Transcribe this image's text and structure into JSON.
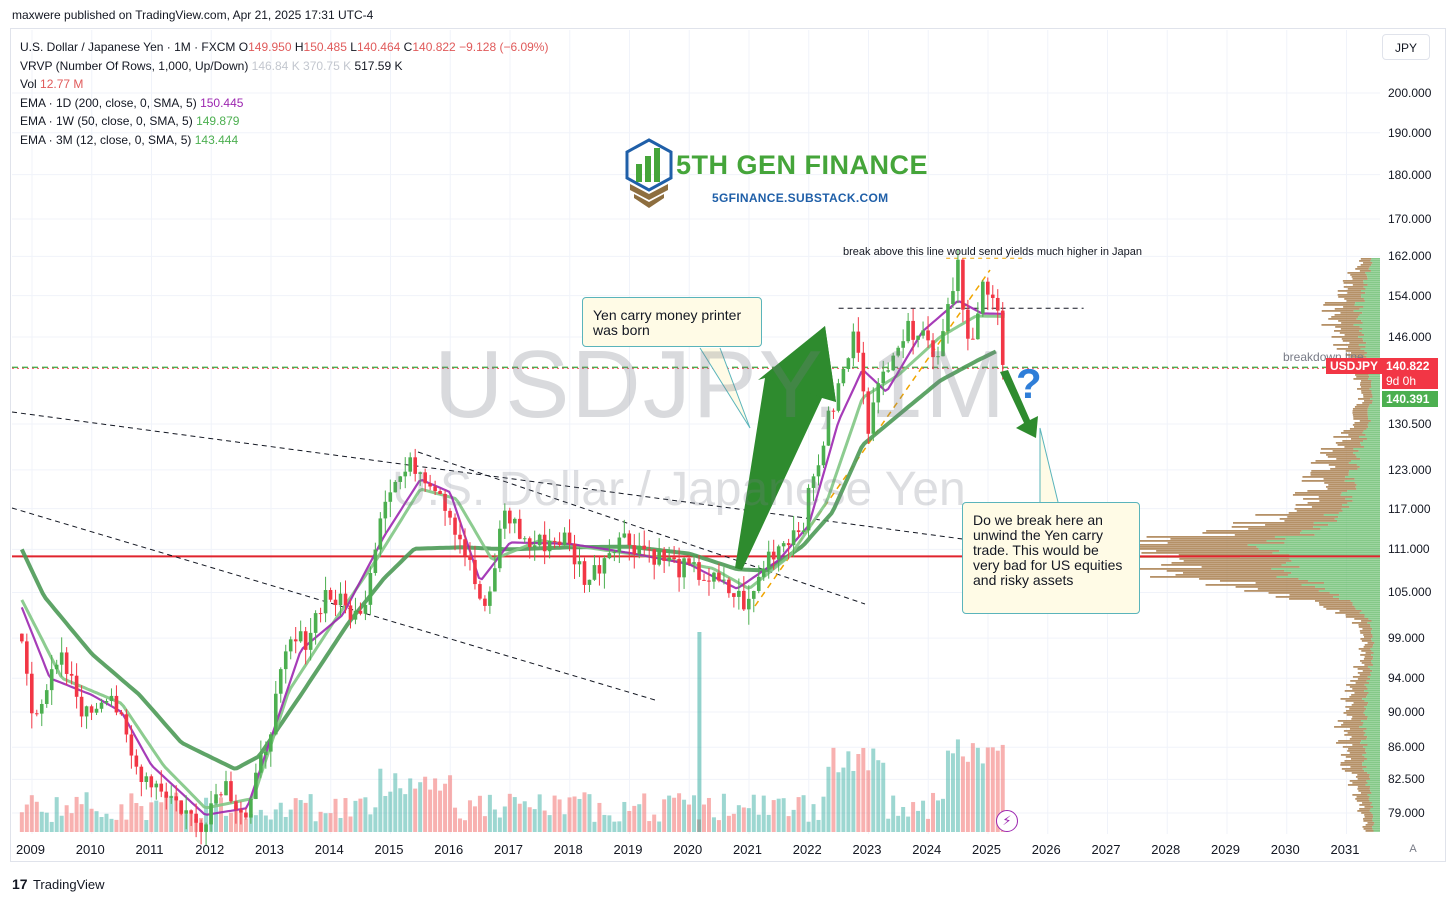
{
  "publisher": "maxwere published on TradingView.com, Apr 21, 2025 17:31 UTC-4",
  "legend": {
    "symbol_line": "U.S. Dollar / Japanese Yen · 1M · FXCM",
    "ohlc": {
      "o_label": "O",
      "o": "149.950",
      "h_label": "H",
      "h": "150.485",
      "l_label": "L",
      "l": "140.464",
      "c_label": "C",
      "c": "140.822",
      "change": "−9.128 (−6.09%)"
    },
    "vrvp": {
      "label": "VRVP (Number Of Rows, 1,000, Up/Down)",
      "v1": "146.84 K",
      "v2": "370.75 K",
      "v3": "517.59 K"
    },
    "vol": {
      "label": "Vol",
      "value": "12.77 M"
    },
    "ema1": {
      "label": "EMA · 1D (200, close, 0, SMA, 5)",
      "value": "150.445"
    },
    "ema2": {
      "label": "EMA · 1W (50, close, 0, SMA, 5)",
      "value": "149.879"
    },
    "ema3": {
      "label": "EMA · 3M (12, close, 0, SMA, 5)",
      "value": "143.444"
    }
  },
  "currency": "JPY",
  "logo": {
    "title": "5TH GEN FINANCE",
    "subtitle": "5GFINANCE.SUBSTACK.COM"
  },
  "watermark": {
    "symbol": "USDJPY, 1M",
    "name": "U.S. Dollar / Japanese Yen"
  },
  "annotations": {
    "callout1": "Yen carry money printer was born",
    "callout2": "Do we break here an unwind the Yen carry trade.  This would be very bad for US equities and risky assets",
    "break_above": "break above this line would send yields much higher in Japan",
    "breakdown": "breakdown line",
    "question": "?"
  },
  "tags": {
    "symbol": "USDJPY",
    "price": "140.822",
    "countdown": "9d 0h",
    "ema_price": "140.391"
  },
  "scale_button": "A",
  "footer": {
    "mark": "17",
    "brand": "TradingView"
  },
  "colors": {
    "up": "#4caf50",
    "down": "#f23645",
    "ema1": "#9c27b0",
    "ema2": "#81c784",
    "ema3": "#4c9a56",
    "support": "#e0242d",
    "arrow": "#2e8b2e"
  },
  "chart_data": {
    "type": "candlestick",
    "title": "U.S. Dollar / Japanese Yen · 1M · FXCM",
    "scale": "log",
    "ylim": [
      77.5,
      210
    ],
    "y_ticks": [
      "200.000",
      "190.000",
      "180.000",
      "170.000",
      "162.000",
      "154.000",
      "146.000",
      "130.500",
      "123.000",
      "117.000",
      "111.000",
      "105.000",
      "99.000",
      "94.000",
      "90.000",
      "86.000",
      "82.500",
      "79.000"
    ],
    "x_ticks": [
      "2009",
      "2010",
      "2011",
      "2012",
      "2013",
      "2014",
      "2015",
      "2016",
      "2017",
      "2018",
      "2019",
      "2020",
      "2021",
      "2022",
      "2023",
      "2024",
      "2025",
      "2026",
      "2027",
      "2028",
      "2029",
      "2030",
      "2031"
    ],
    "close_anchors": [
      [
        2008.83,
        98.5
      ],
      [
        2009.0,
        90.0
      ],
      [
        2009.5,
        96.0
      ],
      [
        2009.9,
        89.5
      ],
      [
        2010.3,
        93.0
      ],
      [
        2010.7,
        84.0
      ],
      [
        2011.2,
        81.5
      ],
      [
        2011.8,
        77.7
      ],
      [
        2012.2,
        82.5
      ],
      [
        2012.6,
        78.5
      ],
      [
        2012.9,
        86.0
      ],
      [
        2013.3,
        98.0
      ],
      [
        2013.6,
        99.0
      ],
      [
        2013.9,
        105.0
      ],
      [
        2014.5,
        101.5
      ],
      [
        2014.9,
        119.5
      ],
      [
        2015.4,
        124.0
      ],
      [
        2015.8,
        120.5
      ],
      [
        2016.2,
        112.0
      ],
      [
        2016.6,
        101.5
      ],
      [
        2016.9,
        117.0
      ],
      [
        2017.3,
        111.5
      ],
      [
        2017.9,
        112.7
      ],
      [
        2018.3,
        106.5
      ],
      [
        2018.8,
        113.0
      ],
      [
        2019.3,
        111.0
      ],
      [
        2019.8,
        108.5
      ],
      [
        2020.2,
        107.5
      ],
      [
        2020.8,
        104.5
      ],
      [
        2021.0,
        103.2
      ],
      [
        2021.3,
        110.0
      ],
      [
        2021.9,
        115.0
      ],
      [
        2022.3,
        130.0
      ],
      [
        2022.8,
        147.5
      ],
      [
        2023.0,
        130.5
      ],
      [
        2023.4,
        144.5
      ],
      [
        2023.9,
        149.0
      ],
      [
        2024.1,
        141.0
      ],
      [
        2024.5,
        161.5
      ],
      [
        2024.7,
        142.0
      ],
      [
        2024.95,
        157.0
      ],
      [
        2025.1,
        151.0
      ],
      [
        2025.2,
        149.9
      ],
      [
        2025.3,
        140.8
      ]
    ],
    "ema_anchors": {
      "ema_1d_200": [
        [
          2008.83,
          103
        ],
        [
          2009.3,
          94
        ],
        [
          2010.0,
          92
        ],
        [
          2010.5,
          90
        ],
        [
          2011.0,
          84
        ],
        [
          2011.9,
          78.8
        ],
        [
          2012.6,
          79.5
        ],
        [
          2013.1,
          89
        ],
        [
          2013.5,
          97.5
        ],
        [
          2014.2,
          102
        ],
        [
          2014.9,
          113
        ],
        [
          2015.5,
          121.5
        ],
        [
          2016.0,
          119.5
        ],
        [
          2016.5,
          106.5
        ],
        [
          2017.0,
          112
        ],
        [
          2018.0,
          111.8
        ],
        [
          2019.0,
          110.5
        ],
        [
          2020.0,
          108.9
        ],
        [
          2020.8,
          105.5
        ],
        [
          2021.5,
          109.5
        ],
        [
          2022.0,
          114.5
        ],
        [
          2022.5,
          131
        ],
        [
          2022.9,
          140
        ],
        [
          2023.3,
          136
        ],
        [
          2023.9,
          147
        ],
        [
          2024.5,
          153
        ],
        [
          2024.9,
          150.5
        ],
        [
          2025.3,
          150.4
        ]
      ],
      "ema_1w_50": [
        [
          2008.83,
          104
        ],
        [
          2009.5,
          94
        ],
        [
          2010.5,
          91
        ],
        [
          2011.2,
          84
        ],
        [
          2011.9,
          79.5
        ],
        [
          2012.7,
          80.5
        ],
        [
          2013.3,
          92.5
        ],
        [
          2014.0,
          100.5
        ],
        [
          2014.8,
          110
        ],
        [
          2015.5,
          120
        ],
        [
          2016.1,
          118.5
        ],
        [
          2016.7,
          109.5
        ],
        [
          2017.5,
          112.3
        ],
        [
          2018.5,
          111
        ],
        [
          2019.5,
          109.8
        ],
        [
          2020.4,
          108.3
        ],
        [
          2021.0,
          105.5
        ],
        [
          2021.7,
          110.2
        ],
        [
          2022.3,
          118
        ],
        [
          2022.9,
          135
        ],
        [
          2023.5,
          139
        ],
        [
          2024.2,
          146
        ],
        [
          2024.8,
          150
        ],
        [
          2025.3,
          149.9
        ]
      ],
      "ema_3m_12": [
        [
          2008.83,
          111
        ],
        [
          2009.2,
          104.5
        ],
        [
          2010.0,
          97
        ],
        [
          2010.8,
          92
        ],
        [
          2011.5,
          86.5
        ],
        [
          2012.4,
          83.6
        ],
        [
          2012.8,
          85
        ],
        [
          2013.5,
          92
        ],
        [
          2014.3,
          101
        ],
        [
          2014.9,
          107
        ],
        [
          2015.4,
          111.1
        ],
        [
          2016.2,
          111.3
        ],
        [
          2017.0,
          111.0
        ],
        [
          2018.0,
          111.3
        ],
        [
          2019.0,
          111.4
        ],
        [
          2020.0,
          110.4
        ],
        [
          2020.8,
          108.2
        ],
        [
          2021.3,
          108.0
        ],
        [
          2021.9,
          111.5
        ],
        [
          2022.4,
          116.5
        ],
        [
          2022.9,
          127
        ],
        [
          2023.5,
          132
        ],
        [
          2024.2,
          138
        ],
        [
          2024.8,
          141.5
        ],
        [
          2025.15,
          143.4
        ]
      ]
    },
    "levels": {
      "support": 110.0,
      "breakdown": 140.39,
      "resistance": 151.5,
      "top": 161.6
    },
    "last": {
      "close": 140.822,
      "ema_tag": 140.391
    },
    "volume_note": "monthly volume bars shown under price"
  }
}
